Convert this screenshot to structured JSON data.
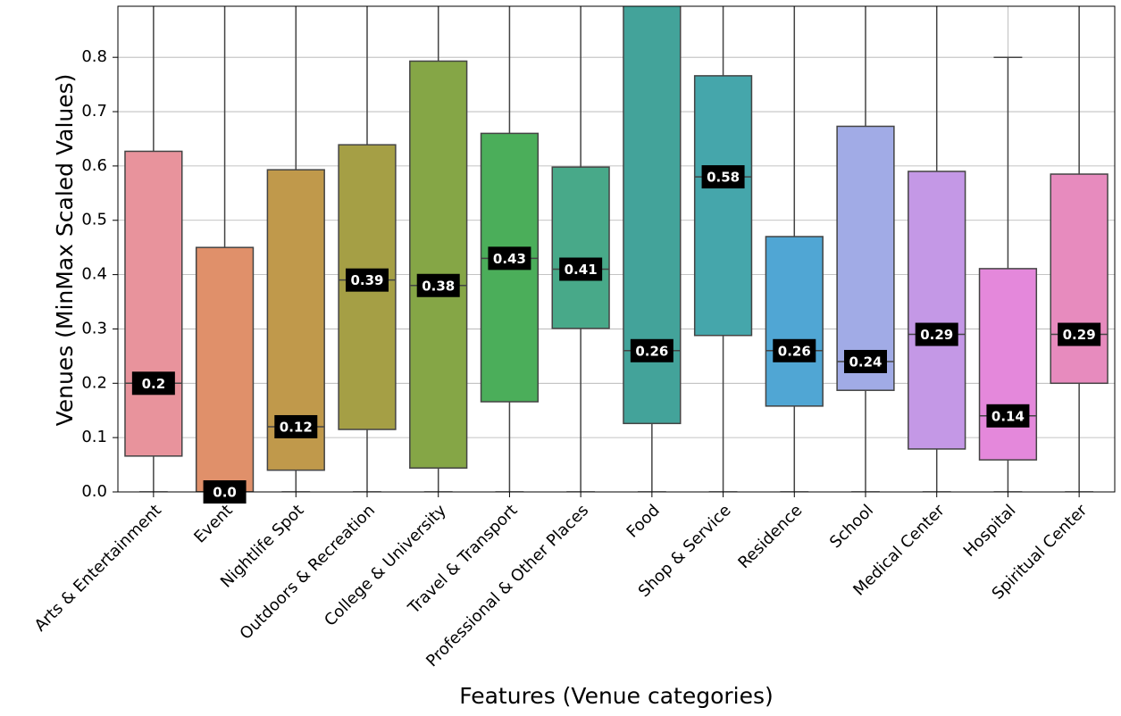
{
  "chart_data": {
    "type": "box",
    "xlabel": "Features (Venue categories)",
    "ylabel": "Venues (MinMax Scaled Values)",
    "categories": [
      "Arts & Entertainment",
      "Event",
      "Nightlife Spot",
      "Outdoors & Recreation",
      "College & University",
      "Travel & Transport",
      "Professional & Other Places",
      "Food",
      "Shop & Service",
      "Residence",
      "School",
      "Medical Center",
      "Hospital",
      "Spiritual Center"
    ],
    "colors": [
      "#e8939c",
      "#e0906a",
      "#c0994b",
      "#a59f45",
      "#85a646",
      "#4bae5a",
      "#48a989",
      "#43a39a",
      "#45a6ab",
      "#50a6d4",
      "#a1abe6",
      "#c498e6",
      "#e488db",
      "#e78bbe"
    ],
    "whisker_low": [
      0,
      0,
      0,
      0,
      0,
      0,
      0,
      0,
      0,
      0,
      0,
      0,
      0,
      0
    ],
    "q1": [
      0.066,
      0,
      0.04,
      0.115,
      0.044,
      0.166,
      0.301,
      0.126,
      0.288,
      0.158,
      0.187,
      0.079,
      0.059,
      0.2
    ],
    "median": [
      0.2,
      0.0,
      0.12,
      0.39,
      0.38,
      0.43,
      0.41,
      0.26,
      0.58,
      0.26,
      0.24,
      0.29,
      0.14,
      0.29
    ],
    "value_labels": [
      "0.2",
      "0.0",
      "0.12",
      "0.39",
      "0.38",
      "0.43",
      "0.41",
      "0.26",
      "0.58",
      "0.26",
      "0.24",
      "0.29",
      "0.14",
      "0.29"
    ],
    "q3": [
      0.627,
      0.45,
      0.593,
      0.639,
      0.793,
      0.66,
      0.598,
      0.95,
      0.766,
      0.47,
      0.673,
      0.59,
      0.411,
      0.585
    ],
    "whisker_high": [
      1.0,
      1.0,
      1.0,
      1.0,
      1.0,
      1.0,
      1.0,
      1.0,
      1.0,
      1.0,
      1.0,
      1.0,
      0.8,
      1.0
    ],
    "ylim": [
      0,
      0.894
    ],
    "yticks": [
      {
        "value": 0,
        "label": "0.0"
      },
      0.1,
      0.2,
      0.3,
      0.4,
      0.5,
      0.6,
      0.7,
      0.8
    ],
    "grid": true
  }
}
